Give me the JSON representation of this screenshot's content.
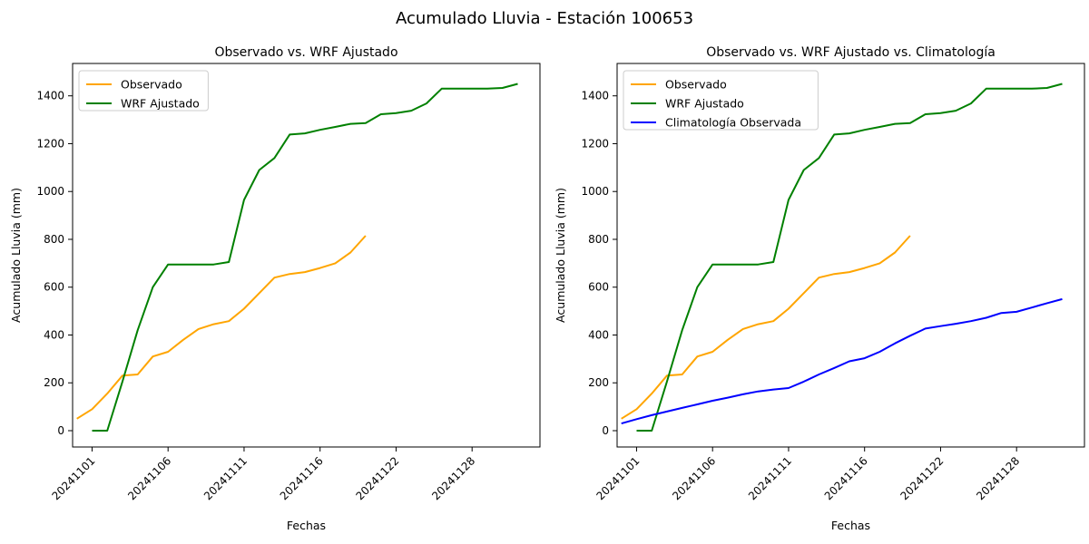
{
  "figure": {
    "suptitle": "Acumulado Lluvia - Estación 100653",
    "background": "#ffffff"
  },
  "chart_data": [
    {
      "type": "line",
      "title": "Observado vs. WRF Ajustado",
      "xlabel": "Fechas",
      "ylabel": "Acumulado Lluvia (mm)",
      "x_axis": {
        "tick_indices": [
          1,
          6,
          11,
          16,
          21,
          26
        ],
        "tick_labels": [
          "20241101",
          "20241106",
          "20241111",
          "20241116",
          "20241122",
          "20241128"
        ],
        "index_count": 30,
        "tick_rotation_deg": 45
      },
      "y_axis": {
        "ticks": [
          0,
          200,
          400,
          600,
          800,
          1000,
          1200,
          1400
        ],
        "ylim": [
          -70,
          1535
        ]
      },
      "legend": {
        "position": "upper-left"
      },
      "series": [
        {
          "name": "Observado",
          "color": "#FFA500",
          "start_index": 0,
          "values": [
            50,
            90,
            155,
            230,
            235,
            310,
            330,
            380,
            425,
            445,
            458,
            510,
            575,
            640,
            655,
            663,
            680,
            700,
            745,
            815
          ]
        },
        {
          "name": "WRF Ajustado",
          "color": "#008000",
          "start_index": 1,
          "values": [
            0,
            0,
            205,
            420,
            600,
            695,
            695,
            695,
            695,
            705,
            965,
            1090,
            1140,
            1238,
            1243,
            1258,
            1270,
            1283,
            1286,
            1323,
            1328,
            1338,
            1368,
            1430,
            1430,
            1430,
            1430,
            1433,
            1450
          ]
        }
      ]
    },
    {
      "type": "line",
      "title": "Observado vs. WRF Ajustado vs. Climatología",
      "xlabel": "Fechas",
      "ylabel": "Acumulado Lluvia (mm)",
      "x_axis": {
        "tick_indices": [
          1,
          6,
          11,
          16,
          21,
          26
        ],
        "tick_labels": [
          "20241101",
          "20241106",
          "20241111",
          "20241116",
          "20241122",
          "20241128"
        ],
        "index_count": 30,
        "tick_rotation_deg": 45
      },
      "y_axis": {
        "ticks": [
          0,
          200,
          400,
          600,
          800,
          1000,
          1200,
          1400
        ],
        "ylim": [
          -70,
          1535
        ]
      },
      "legend": {
        "position": "upper-left"
      },
      "series": [
        {
          "name": "Observado",
          "color": "#FFA500",
          "start_index": 0,
          "values": [
            50,
            90,
            155,
            230,
            235,
            310,
            330,
            380,
            425,
            445,
            458,
            510,
            575,
            640,
            655,
            663,
            680,
            700,
            745,
            815
          ]
        },
        {
          "name": "WRF Ajustado",
          "color": "#008000",
          "start_index": 1,
          "values": [
            0,
            0,
            205,
            420,
            600,
            695,
            695,
            695,
            695,
            705,
            965,
            1090,
            1140,
            1238,
            1243,
            1258,
            1270,
            1283,
            1286,
            1323,
            1328,
            1338,
            1368,
            1430,
            1430,
            1430,
            1430,
            1433,
            1450
          ]
        },
        {
          "name": "Climatología Observada",
          "color": "#0000FF",
          "start_index": 0,
          "values": [
            30,
            48,
            65,
            80,
            95,
            110,
            125,
            138,
            152,
            164,
            172,
            178,
            205,
            235,
            262,
            290,
            303,
            330,
            365,
            397,
            427,
            437,
            447,
            458,
            472,
            492,
            497,
            515,
            533,
            550
          ]
        }
      ]
    }
  ]
}
